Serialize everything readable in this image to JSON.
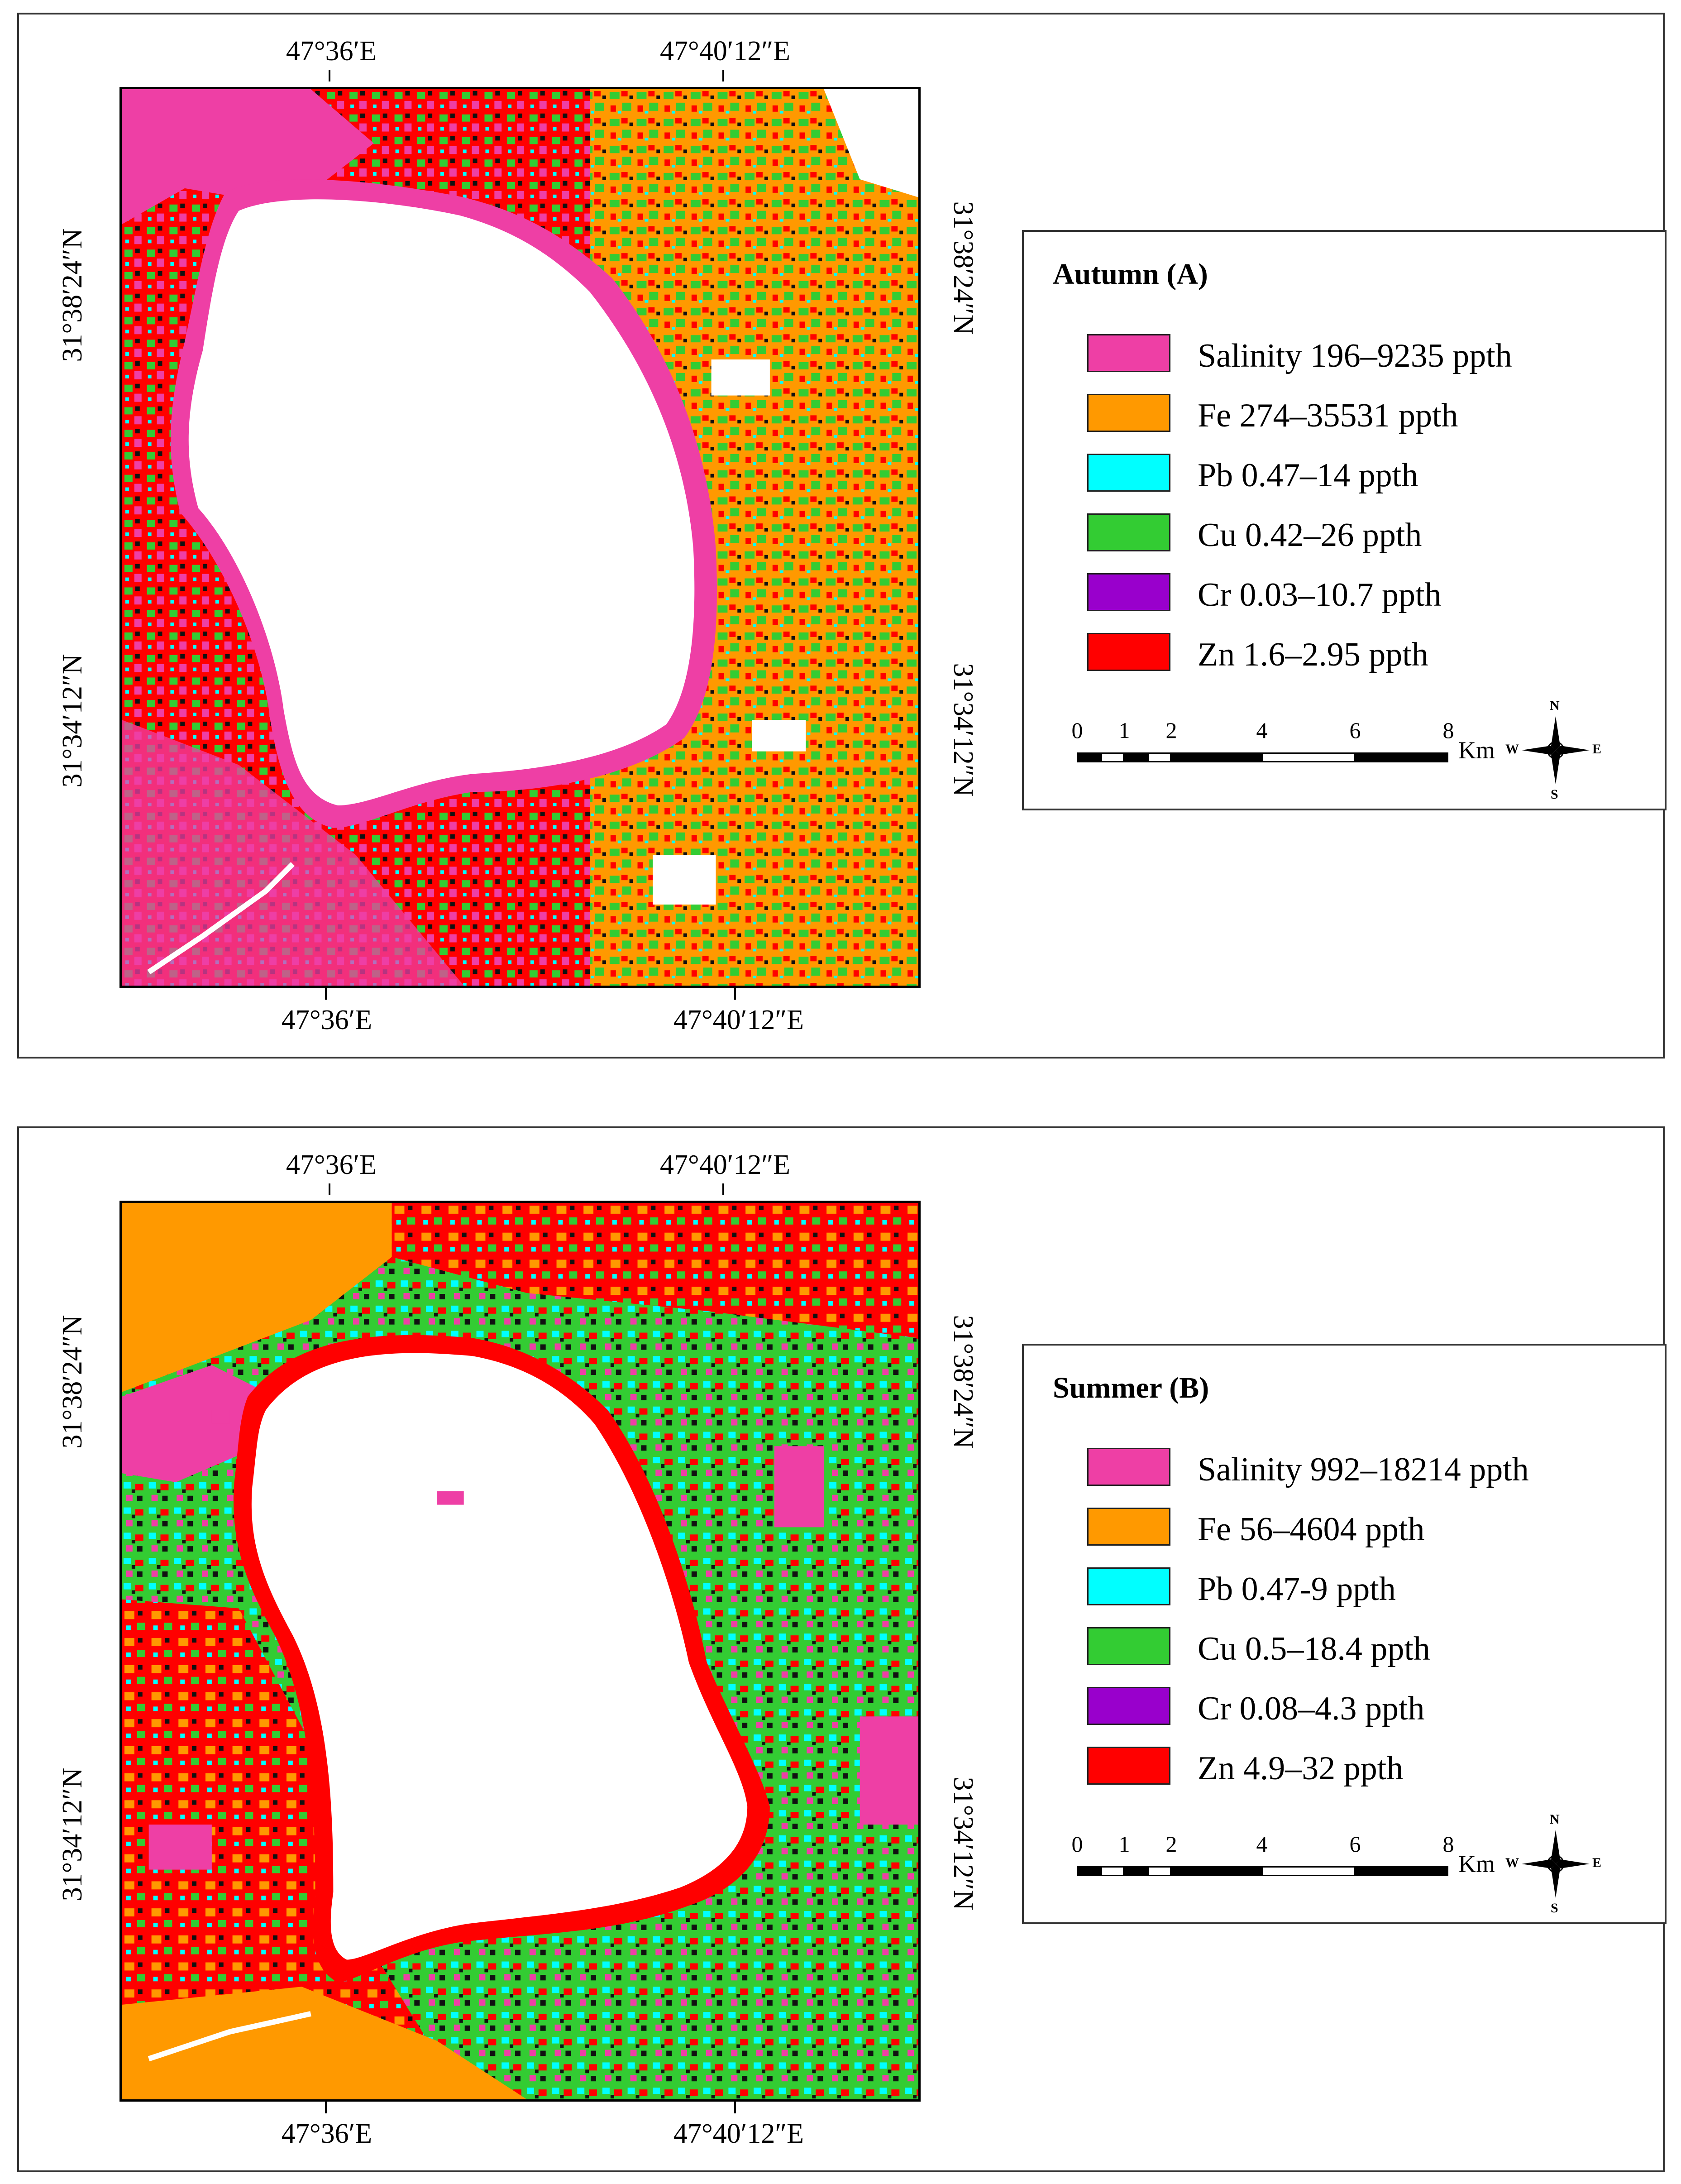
{
  "panels": [
    {
      "id": "autumn",
      "legend_title": "Autumn (A)",
      "top_lon_labels": [
        "47°36′E",
        "47°40′12″E"
      ],
      "bottom_lon_labels": [
        "47°36′E",
        "47°40′12″E"
      ],
      "left_lat_labels": [
        "31°38′24″N",
        "31°34′12″N"
      ],
      "right_lat_labels": [
        "31°38′24″N",
        "31°34′12″N"
      ],
      "legend_items": [
        {
          "label": "Salinity 196–9235 ppth",
          "color": "#ee3fa5"
        },
        {
          "label": "Fe 274–35531 ppth",
          "color": "#ff9900"
        },
        {
          "label": "Pb 0.47–14 ppth",
          "color": "#00ffff"
        },
        {
          "label": "Cu 0.42–26 ppth",
          "color": "#33cc33"
        },
        {
          "label": "Cr 0.03–10.7 ppth",
          "color": "#9900cc"
        },
        {
          "label": "Zn 1.6–2.95 ppth",
          "color": "#ff0000"
        }
      ]
    },
    {
      "id": "summer",
      "legend_title": "Summer (B)",
      "top_lon_labels": [
        "47°36′E",
        "47°40′12″E"
      ],
      "bottom_lon_labels": [
        "47°36′E",
        "47°40′12″E"
      ],
      "left_lat_labels": [
        "31°38′24″N",
        "31°34′12″N"
      ],
      "right_lat_labels": [
        "31°38′24″N",
        "31°34′12″N"
      ],
      "legend_items": [
        {
          "label": "Salinity 992–18214 ppth",
          "color": "#ee3fa5"
        },
        {
          "label": "Fe 56–4604 ppth",
          "color": "#ff9900"
        },
        {
          "label": "Pb 0.47-9 ppth",
          "color": "#00ffff"
        },
        {
          "label": "Cu 0.5–18.4 ppth",
          "color": "#33cc33"
        },
        {
          "label": "Cr 0.08–4.3 ppth",
          "color": "#9900cc"
        },
        {
          "label": "Zn 4.9–32 ppth",
          "color": "#ff0000"
        }
      ]
    }
  ],
  "scale": {
    "ticks": [
      "0",
      "1",
      "2",
      "4",
      "6",
      "8"
    ],
    "unit": "Km"
  },
  "compass": {
    "n": "N",
    "s": "S",
    "e": "E",
    "w": "W"
  }
}
